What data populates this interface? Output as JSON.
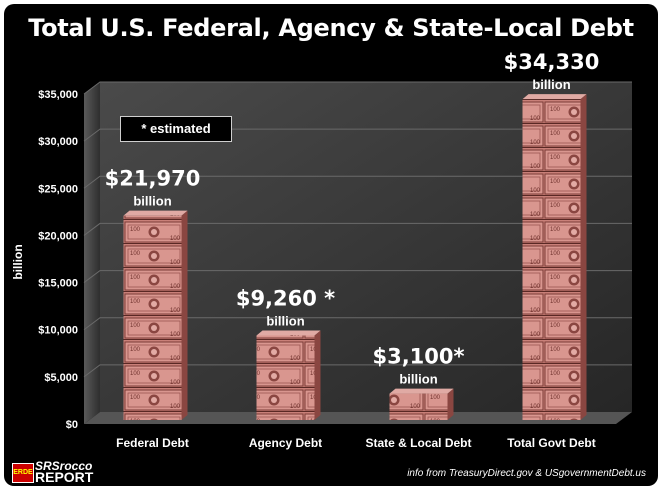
{
  "chart_data": {
    "type": "bar",
    "title": "Total U.S. Federal, Agency & State-Local Debt",
    "ylabel": "billion",
    "ylim": [
      0,
      35000
    ],
    "yticks": [
      "$0",
      "$5,000",
      "$10,000",
      "$15,000",
      "$20,000",
      "$25,000",
      "$30,000",
      "$35,000"
    ],
    "categories": [
      "Federal Debt",
      "Agency Debt",
      "State & Local Debt",
      "Total Govt Debt"
    ],
    "values": [
      21970,
      9260,
      3100,
      34330
    ],
    "value_labels": [
      "$21,970",
      "$9,260 *",
      "$3,100*",
      "$34,330"
    ],
    "unit_label": "billion",
    "note": "* estimated",
    "colors": {
      "bar": "#c98079",
      "bar_dark": "#8a4641",
      "panel": "#3a3a3a",
      "background": "#000000"
    }
  },
  "footer": {
    "logo_badge": "ERDE",
    "logo_line1": "SRSrocco",
    "logo_line2": "REPORT",
    "source": "info from TreasuryDirect.gov & USgovernmentDebt.us"
  }
}
